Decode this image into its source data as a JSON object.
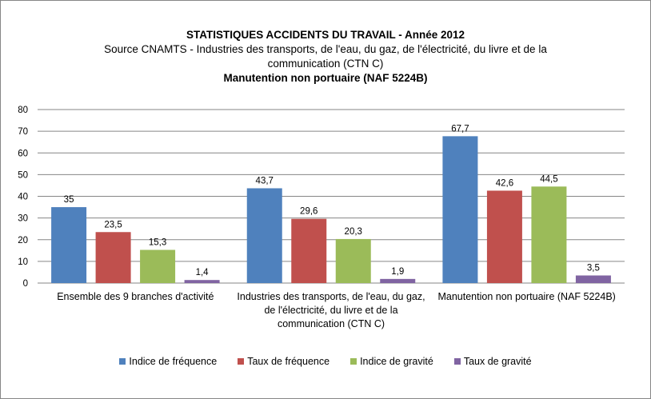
{
  "chart_data": {
    "type": "bar",
    "title": "STATISTIQUES ACCIDENTS DU TRAVAIL - Année 2012",
    "subtitle_lines": [
      "Source CNAMTS - Industries des transports, de l'eau, du gaz, de l'électricité, du livre et de la",
      "communication (CTN C)"
    ],
    "subtitle2": "Manutention non portuaire (NAF 5224B)",
    "categories": [
      [
        "Ensemble des 9 branches d'activité"
      ],
      [
        "Industries des transports, de l'eau, du gaz,",
        "de l'électricité, du livre et de la",
        "communication (CTN C)"
      ],
      [
        "Manutention non portuaire (NAF 5224B)"
      ]
    ],
    "series": [
      {
        "name": "Indice de fréquence",
        "color": "#4F81BD",
        "values": [
          35,
          43.7,
          67.7
        ],
        "labels": [
          "35",
          "43,7",
          "67,7"
        ]
      },
      {
        "name": "Taux de fréquence",
        "color": "#C0504D",
        "values": [
          23.5,
          29.6,
          42.6
        ],
        "labels": [
          "23,5",
          "29,6",
          "42,6"
        ]
      },
      {
        "name": "Indice de gravité",
        "color": "#9BBB59",
        "values": [
          15.3,
          20.3,
          44.5
        ],
        "labels": [
          "15,3",
          "20,3",
          "44,5"
        ]
      },
      {
        "name": "Taux de gravité",
        "color": "#8064A2",
        "values": [
          1.4,
          1.9,
          3.5
        ],
        "labels": [
          "1,4",
          "1,9",
          "3,5"
        ]
      }
    ],
    "ylim": [
      0,
      80
    ],
    "yticks": [
      "0",
      "10",
      "20",
      "30",
      "40",
      "50",
      "60",
      "70",
      "80"
    ],
    "grid": true,
    "legend_position": "bottom"
  }
}
